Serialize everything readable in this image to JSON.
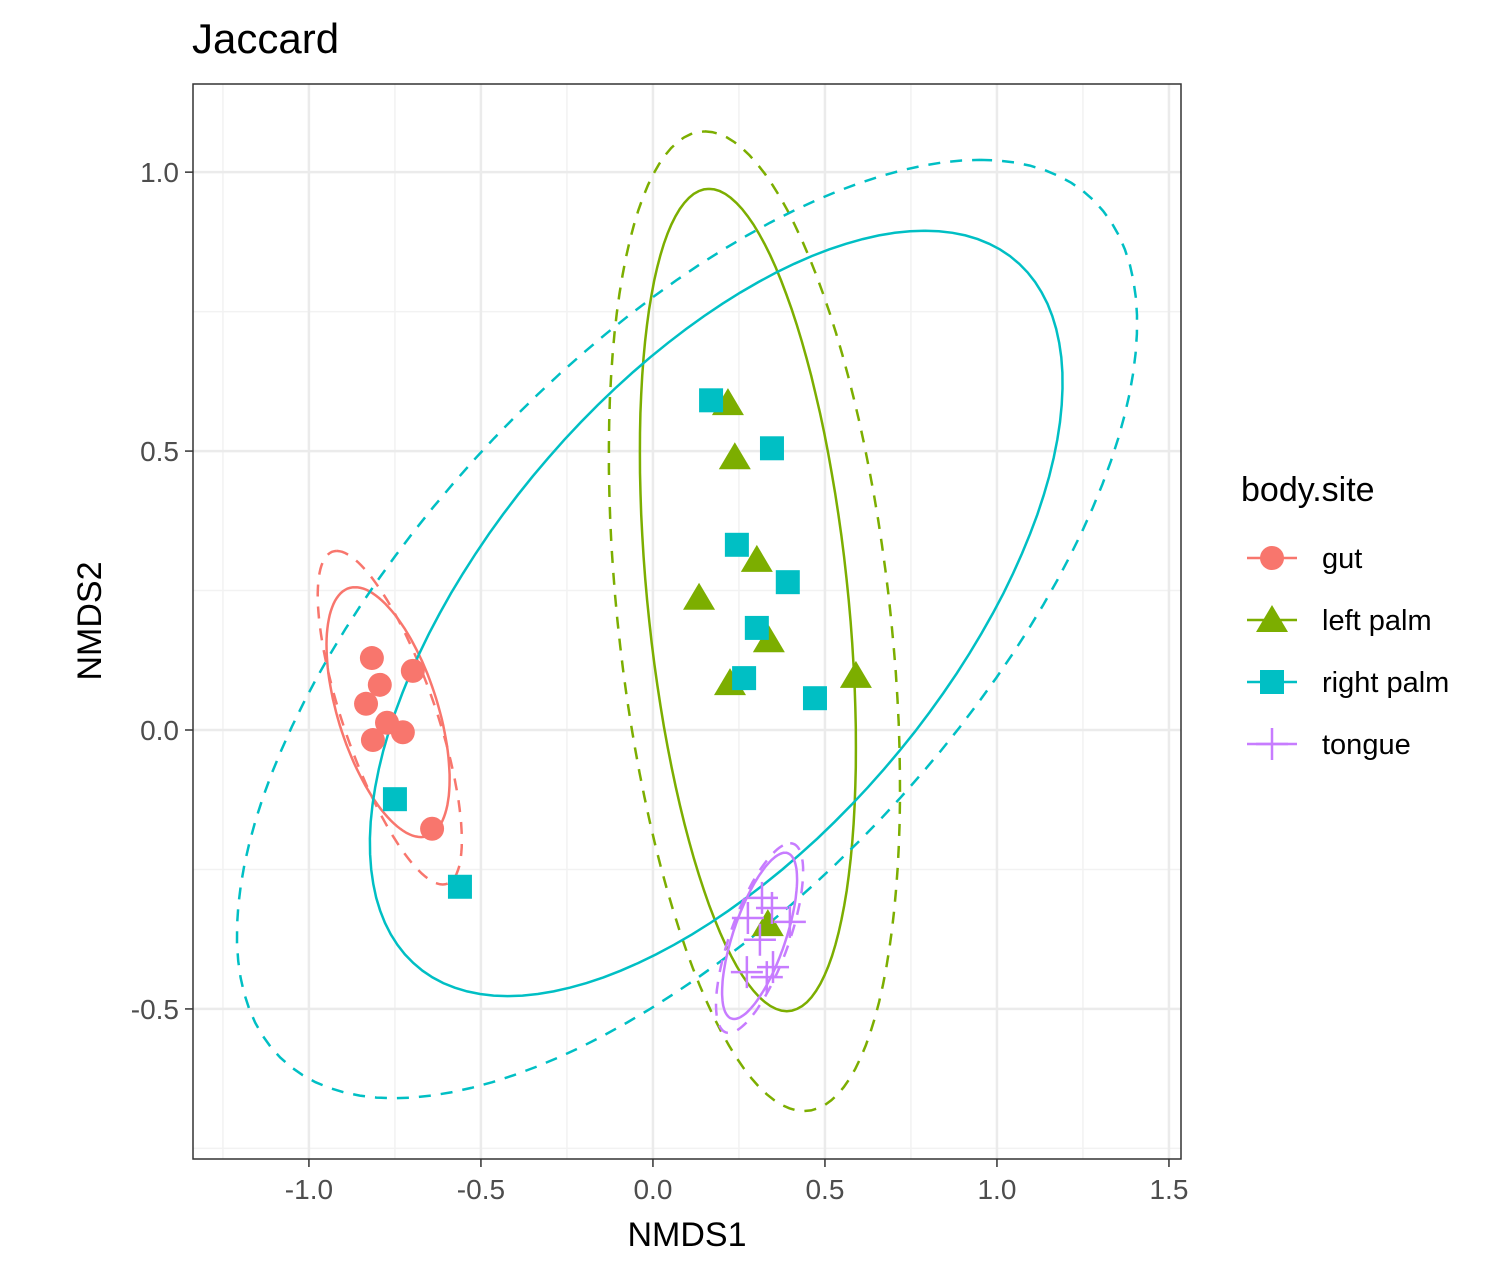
{
  "chart_data": {
    "type": "scatter",
    "title": "Jaccard",
    "xlabel": "NMDS1",
    "ylabel": "NMDS2",
    "xlim": [
      -1.337,
      1.535
    ],
    "ylim": [
      -0.769,
      1.158
    ],
    "xticks": [
      -1.0,
      -0.5,
      0.0,
      0.5,
      1.0,
      1.5
    ],
    "xtick_labels": [
      "-1.0",
      "-0.5",
      "0.0",
      "0.5",
      "1.0",
      "1.5"
    ],
    "yticks": [
      -0.5,
      0.0,
      0.5,
      1.0
    ],
    "ytick_labels": [
      "-0.5",
      "0.0",
      "0.5",
      "1.0"
    ],
    "grid": true,
    "legend": {
      "title": "body.site",
      "placement": "right"
    },
    "series": [
      {
        "name": "gut",
        "color": "#F8766D",
        "marker": "circle",
        "points": [
          [
            -0.817,
            0.129
          ],
          [
            -0.794,
            0.081
          ],
          [
            -0.834,
            0.047
          ],
          [
            -0.698,
            0.106
          ],
          [
            -0.773,
            0.013
          ],
          [
            -0.814,
            -0.018
          ],
          [
            -0.727,
            -0.004
          ],
          [
            -0.642,
            -0.177
          ]
        ],
        "ellipses": [
          {
            "style": "solid",
            "center": [
              -0.77,
              0.032
            ],
            "axis_a": [
              -0.096,
              0.224
            ],
            "axis_b": [
              0.151,
              0
            ]
          },
          {
            "style": "dashed",
            "center": [
              -0.765,
              0.022
            ],
            "axis_a": [
              -0.154,
              0.299
            ],
            "axis_b": [
              0.142,
              0
            ]
          }
        ]
      },
      {
        "name": "left palm",
        "color": "#7CAE00",
        "marker": "triangle",
        "points": [
          [
            0.218,
            0.586
          ],
          [
            0.238,
            0.489
          ],
          [
            0.302,
            0.305
          ],
          [
            0.134,
            0.237
          ],
          [
            0.337,
            0.161
          ],
          [
            0.224,
            0.084
          ],
          [
            0.59,
            0.097
          ],
          [
            0.334,
            -0.348
          ]
        ],
        "ellipses": [
          {
            "style": "solid",
            "center": [
              0.276,
              0.233
            ],
            "axis_a": [
              -0.113,
              0.737
            ],
            "axis_b": [
              0.293,
              0
            ]
          },
          {
            "style": "dashed",
            "center": [
              0.295,
              0.195
            ],
            "axis_a": [
              -0.144,
              0.878
            ],
            "axis_b": [
              0.398,
              0
            ]
          }
        ]
      },
      {
        "name": "right palm",
        "color": "#00BFC4",
        "marker": "square",
        "points": [
          [
            0.169,
            0.591
          ],
          [
            0.346,
            0.505
          ],
          [
            0.244,
            0.332
          ],
          [
            0.392,
            0.265
          ],
          [
            0.302,
            0.183
          ],
          [
            0.265,
            0.093
          ],
          [
            0.471,
            0.057
          ],
          [
            -0.75,
            -0.124
          ],
          [
            -0.561,
            -0.281
          ]
        ],
        "ellipses": [
          {
            "style": "solid",
            "center": [
              0.184,
              0.209
            ],
            "axis_a": [
              0.606,
              0.686
            ],
            "axis_b": [
              0.804,
              0
            ]
          },
          {
            "style": "dashed",
            "center": [
              0.099,
              0.181
            ],
            "axis_a": [
              0.852,
              0.841
            ],
            "axis_b": [
              0.993,
              0
            ]
          }
        ]
      },
      {
        "name": "tongue",
        "color": "#C77CFF",
        "marker": "cross",
        "points": [
          [
            0.317,
            -0.301
          ],
          [
            0.346,
            -0.319
          ],
          [
            0.276,
            -0.337
          ],
          [
            0.398,
            -0.344
          ],
          [
            0.311,
            -0.376
          ],
          [
            0.273,
            -0.434
          ],
          [
            0.331,
            -0.443
          ],
          [
            0.349,
            -0.425
          ]
        ],
        "ellipses": [
          {
            "style": "solid",
            "center": [
              0.31,
              -0.369
            ],
            "axis_a": [
              0.074,
              0.149
            ],
            "axis_b": [
              0.08,
              0
            ]
          },
          {
            "style": "dashed",
            "center": [
              0.31,
              -0.373
            ],
            "axis_a": [
              0.089,
              0.17
            ],
            "axis_b": [
              0.09,
              0
            ]
          }
        ]
      }
    ]
  }
}
